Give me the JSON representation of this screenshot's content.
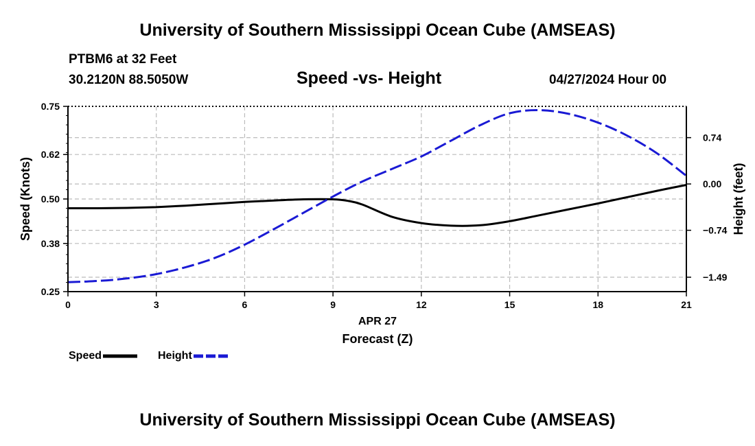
{
  "header": {
    "title": "University of Southern Mississippi Ocean Cube (AMSEAS)",
    "station_name": "PTBM6 at 32 Feet",
    "station_coords": "30.2120N  88.5050W",
    "subtitle": "Speed -vs- Height",
    "datetime": "04/27/2024 Hour 00"
  },
  "footer": {
    "title": "University of Southern Mississippi Ocean Cube (AMSEAS)"
  },
  "colors": {
    "speed": "#000000",
    "height": "#1a1ad4",
    "grid": "#bbbbbb"
  },
  "chart_data": {
    "type": "line",
    "title": "Speed -vs- Height",
    "xlabel": "Forecast (Z)",
    "xdate_label": "APR 27",
    "xlim": [
      0,
      21
    ],
    "xticks": [
      "0",
      "3",
      "6",
      "9",
      "12",
      "15",
      "18",
      "21"
    ],
    "ylabel": "Speed (Knots)",
    "ylim": [
      0.25,
      0.75
    ],
    "yticks": [
      "0.25",
      "0.38",
      "0.50",
      "0.62",
      "0.75"
    ],
    "ylabel2": "Height (feet)",
    "ylim2": [
      -1.72,
      1.24
    ],
    "yticks2": [
      "-1.49",
      "-0.74",
      "0.00",
      "0.74"
    ],
    "grid": true,
    "legend_position": "bottom-left",
    "series": [
      {
        "name": "Speed",
        "axis": "left",
        "style": "solid",
        "x": [
          0,
          1,
          2,
          3,
          4,
          5,
          6,
          7,
          8,
          9,
          9.5,
          10,
          11,
          12,
          13,
          14,
          15,
          16,
          17,
          18,
          19,
          20,
          21
        ],
        "values": [
          0.475,
          0.475,
          0.476,
          0.478,
          0.482,
          0.487,
          0.492,
          0.496,
          0.499,
          0.499,
          0.495,
          0.485,
          0.452,
          0.435,
          0.428,
          0.429,
          0.44,
          0.456,
          0.472,
          0.488,
          0.505,
          0.522,
          0.538
        ]
      },
      {
        "name": "Height",
        "axis": "right",
        "style": "dashed",
        "x": [
          0,
          1,
          2,
          3,
          4,
          5,
          6,
          7,
          8,
          9,
          10,
          11,
          12,
          13,
          14,
          15,
          16,
          17,
          18,
          19,
          20,
          21
        ],
        "values": [
          -1.57,
          -1.55,
          -1.51,
          -1.44,
          -1.33,
          -1.18,
          -0.97,
          -0.72,
          -0.46,
          -0.2,
          0.04,
          0.24,
          0.44,
          0.69,
          0.94,
          1.13,
          1.18,
          1.12,
          0.98,
          0.77,
          0.49,
          0.13
        ]
      }
    ]
  },
  "legend": {
    "speed_label": "Speed",
    "height_label": "Height"
  }
}
